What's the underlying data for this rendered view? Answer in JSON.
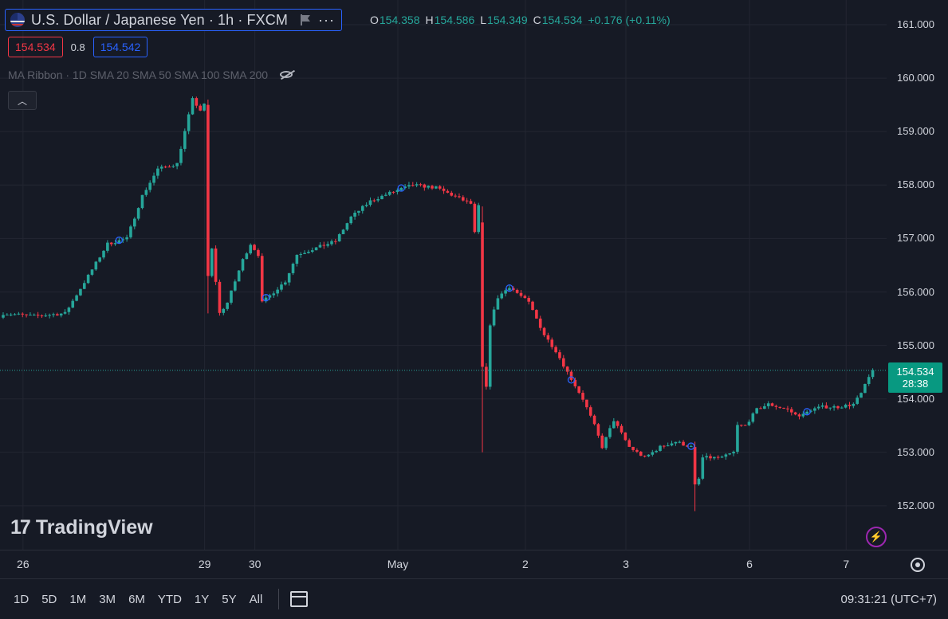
{
  "header": {
    "title": "U.S. Dollar / Japanese Yen · 1h · FXCM",
    "ohlc": {
      "open_label": "O",
      "open": "154.358",
      "high_label": "H",
      "high": "154.586",
      "low_label": "L",
      "low": "154.349",
      "close_label": "C",
      "close": "154.534",
      "change": "+0.176 (+0.11%)"
    },
    "sell_price": "154.534",
    "spread": "0.8",
    "buy_price": "154.542",
    "indicator": "MA Ribbon · 1D SMA 20 SMA 50 SMA 100 SMA 200"
  },
  "watermark": {
    "mark": "17",
    "text": "TradingView"
  },
  "last_price": {
    "price": "154.534",
    "countdown": "28:38",
    "value": 154.534
  },
  "bottom_bar": {
    "ranges": [
      "1D",
      "5D",
      "1M",
      "3M",
      "6M",
      "YTD",
      "1Y",
      "5Y",
      "All"
    ],
    "clock": "09:31:21 (UTC+7)"
  },
  "colors": {
    "up": "#26a69a",
    "down": "#f23645",
    "background": "#161a25",
    "grid": "#232632",
    "accent": "#2962ff"
  },
  "icons": [
    "us-japan-flag-icon",
    "flag-icon",
    "more-icon",
    "eye-crossed-icon",
    "chevron-up-icon",
    "lightning-icon",
    "settings-icon",
    "calendar-icon"
  ],
  "chart_data": {
    "type": "candlestick",
    "symbol": "USDJPY",
    "timeframe": "1h",
    "yticks": [
      "161.000",
      "160.000",
      "159.000",
      "158.000",
      "157.000",
      "156.000",
      "155.000",
      "154.000",
      "153.000",
      "152.000"
    ],
    "ylim": [
      151.4,
      161.4
    ],
    "xticks": [
      "26",
      "29",
      "30",
      "May",
      "2",
      "3",
      "6",
      "7"
    ],
    "xtick_index": [
      1,
      48,
      61,
      98,
      131,
      157,
      189,
      214
    ],
    "grid": true,
    "anchors": [
      [
        0,
        155.6
      ],
      [
        8,
        155.55
      ],
      [
        16,
        155.6
      ],
      [
        22,
        156.3
      ],
      [
        27,
        156.9
      ],
      [
        32,
        157.0
      ],
      [
        36,
        157.8
      ],
      [
        40,
        158.3
      ],
      [
        45,
        158.4
      ],
      [
        49,
        159.6
      ],
      [
        51,
        159.4
      ],
      [
        52,
        159.5
      ],
      [
        53,
        156.3
      ],
      [
        54,
        156.8
      ],
      [
        56,
        155.6
      ],
      [
        58,
        155.8
      ],
      [
        62,
        156.6
      ],
      [
        64,
        156.9
      ],
      [
        66,
        156.7
      ],
      [
        67,
        155.8
      ],
      [
        70,
        156.0
      ],
      [
        73,
        156.2
      ],
      [
        76,
        156.7
      ],
      [
        80,
        156.8
      ],
      [
        86,
        156.95
      ],
      [
        90,
        157.4
      ],
      [
        95,
        157.7
      ],
      [
        100,
        157.85
      ],
      [
        106,
        158.0
      ],
      [
        112,
        157.95
      ],
      [
        118,
        157.75
      ],
      [
        121,
        157.65
      ],
      [
        122,
        157.1
      ],
      [
        123,
        157.6
      ],
      [
        124,
        154.6
      ],
      [
        125,
        154.2
      ],
      [
        126,
        155.4
      ],
      [
        128,
        155.9
      ],
      [
        131,
        156.1
      ],
      [
        136,
        155.8
      ],
      [
        140,
        155.2
      ],
      [
        143,
        154.9
      ],
      [
        146,
        154.5
      ],
      [
        150,
        154.0
      ],
      [
        153,
        153.5
      ],
      [
        155,
        153.1
      ],
      [
        158,
        153.6
      ],
      [
        162,
        153.1
      ],
      [
        166,
        152.9
      ],
      [
        170,
        153.1
      ],
      [
        174,
        153.2
      ],
      [
        178,
        153.1
      ],
      [
        179,
        152.4
      ],
      [
        180,
        152.5
      ],
      [
        181,
        152.9
      ],
      [
        184,
        152.9
      ],
      [
        186,
        152.9
      ],
      [
        189,
        153.0
      ],
      [
        190,
        153.5
      ],
      [
        192,
        153.5
      ],
      [
        195,
        153.8
      ],
      [
        198,
        153.9
      ],
      [
        203,
        153.8
      ],
      [
        205,
        153.7
      ],
      [
        207,
        153.7
      ],
      [
        209,
        153.8
      ],
      [
        212,
        153.85
      ],
      [
        216,
        153.85
      ],
      [
        220,
        153.9
      ],
      [
        222,
        154.1
      ],
      [
        224,
        154.4
      ],
      [
        225,
        154.534
      ]
    ],
    "big_moves": [
      {
        "index": 53,
        "open": 159.5,
        "close": 156.3,
        "high": 159.6,
        "low": 155.6
      },
      {
        "index": 124,
        "open": 157.3,
        "close": 154.6,
        "high": 157.6,
        "low": 153.0
      },
      {
        "index": 179,
        "open": 153.1,
        "close": 152.4,
        "high": 153.2,
        "low": 151.9
      }
    ],
    "markers": [
      30,
      68,
      103,
      131,
      147,
      178,
      208
    ]
  }
}
